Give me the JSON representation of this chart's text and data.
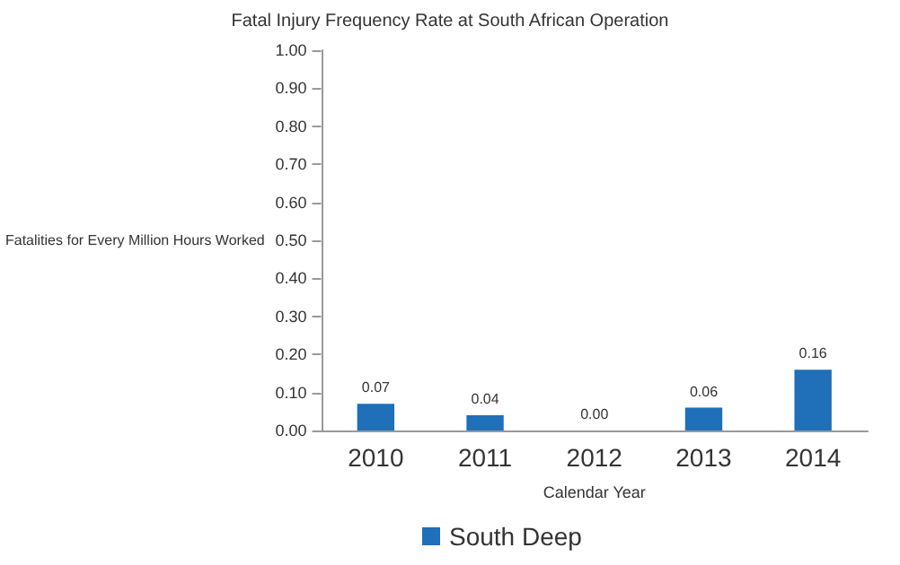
{
  "chart_data": {
    "type": "bar",
    "title": "Fatal Injury Frequency Rate at South African Operation",
    "xlabel": "Calendar Year",
    "ylabel": "Fatalities for Every Million Hours Worked",
    "categories": [
      "2010",
      "2011",
      "2012",
      "2013",
      "2014"
    ],
    "series": [
      {
        "name": "South Deep",
        "color": "#1f6fb9",
        "values": [
          0.07,
          0.04,
          0,
          0.06,
          0.16
        ],
        "value_labels": [
          "0.07",
          "0.04",
          "0.00",
          "0.06",
          "0.16"
        ]
      }
    ],
    "ylim": [
      0,
      1
    ],
    "yticks": [
      {
        "value": 0,
        "label": "0.00"
      },
      {
        "value": 0.1,
        "label": "0.10"
      },
      {
        "value": 0.2,
        "label": "0.20"
      },
      {
        "value": 0.3,
        "label": "0.30"
      },
      {
        "value": 0.4,
        "label": "0.40"
      },
      {
        "value": 0.5,
        "label": "0.50"
      },
      {
        "value": 0.6,
        "label": "0.60"
      },
      {
        "value": 0.7,
        "label": "0.70"
      },
      {
        "value": 0.8,
        "label": "0.80"
      },
      {
        "value": 0.9,
        "label": "0.90"
      },
      {
        "value": 1,
        "label": "1.00"
      }
    ],
    "grid": false,
    "legend": "bottom"
  }
}
